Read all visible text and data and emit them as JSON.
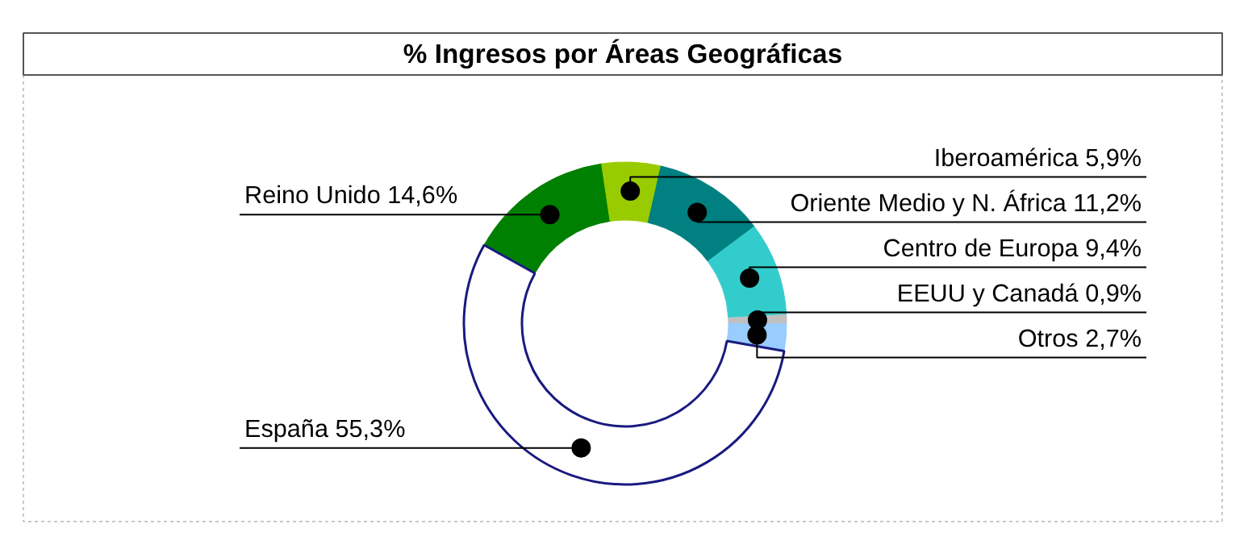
{
  "chart_data": {
    "type": "donut",
    "title": "% Ingresos por Áreas Geográficas",
    "categories": [
      "Reino Unido",
      "Iberoamérica",
      "Oriente Medio y N. África",
      "Centro de Europa",
      "EEUU y Canadá",
      "Otros",
      "España"
    ],
    "values": [
      14.6,
      5.9,
      11.2,
      9.4,
      0.9,
      2.7,
      55.3
    ],
    "colors": [
      "#008000",
      "#99cc00",
      "#008080",
      "#33cccc",
      "#c0c0c0",
      "#99ccff",
      "#ffffff"
    ],
    "value_labels": [
      "14,6%",
      "5,9%",
      "11,2%",
      "9,4%",
      "0,9%",
      "2,7%",
      "55,3%"
    ]
  }
}
